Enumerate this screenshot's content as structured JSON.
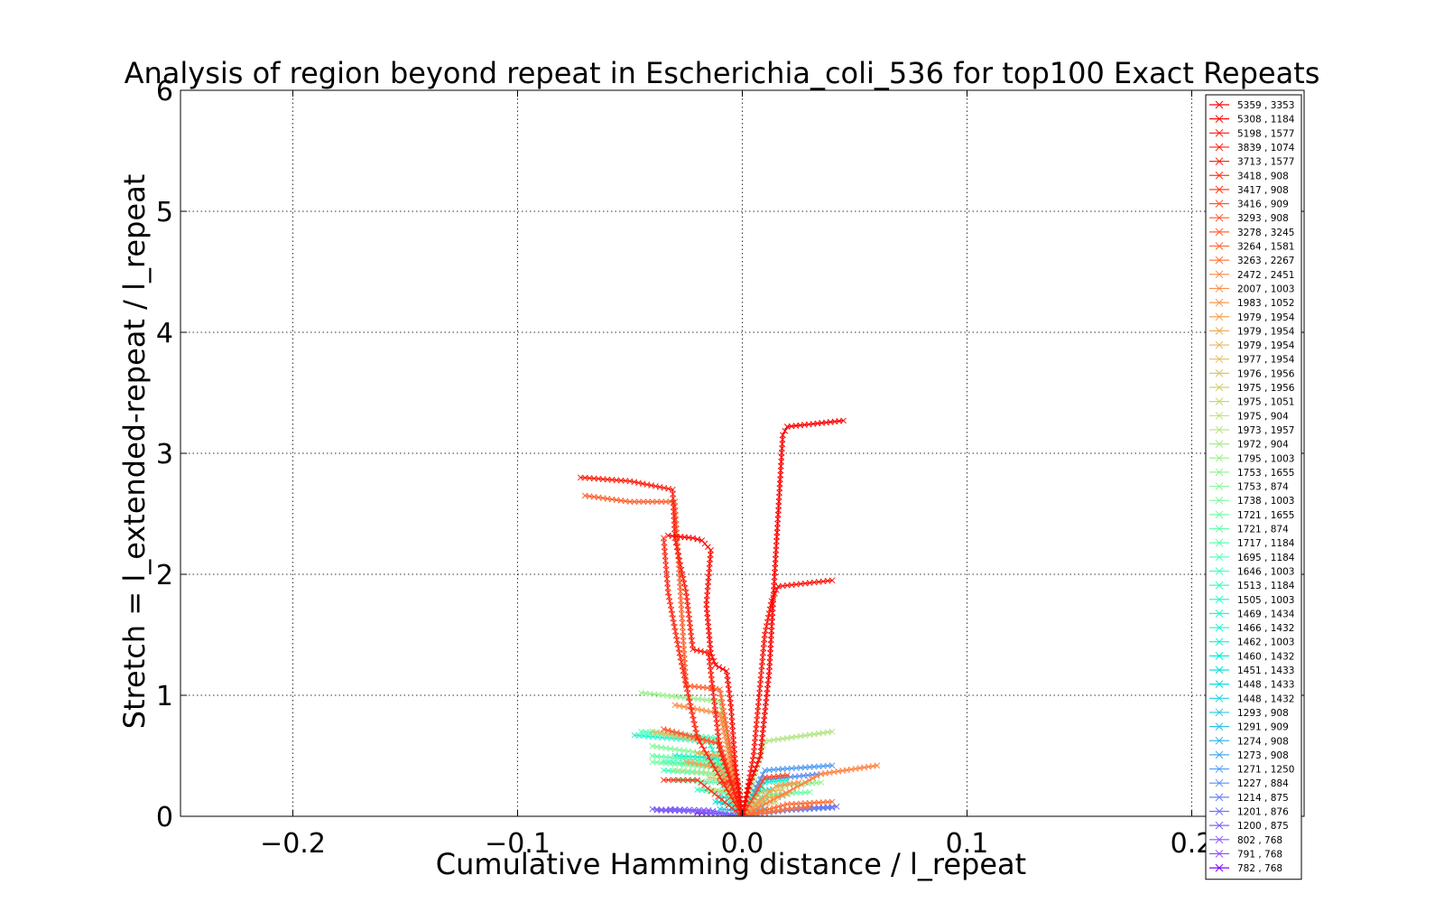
{
  "chart_data": {
    "type": "line",
    "title": "Analysis of region beyond repeat in Escherichia_coli_536 for top100 Exact Repeats",
    "xlabel": "Cumulative Hamming distance / l_repeat",
    "ylabel": "Stretch =  l_extended-repeat / l_repeat",
    "xlim": [
      -0.25,
      0.25
    ],
    "ylim": [
      0,
      6
    ],
    "xticks": [
      -0.2,
      -0.1,
      0.0,
      0.1,
      0.2
    ],
    "xtick_labels": [
      "−0.2",
      "−0.1",
      "0.0",
      "0.1",
      "0.2"
    ],
    "yticks": [
      0,
      1,
      2,
      3,
      4,
      5,
      6
    ],
    "ytick_labels": [
      "0",
      "1",
      "2",
      "3",
      "4",
      "5",
      "6"
    ],
    "grid": true,
    "legend_position": "right",
    "marker": "x",
    "colormap": "rainbow",
    "series": [
      {
        "name": "5359 , 3353",
        "color": "#ff0000",
        "points": [
          [
            0,
            0
          ],
          [
            0.003,
            0.25
          ],
          [
            0.008,
            0.5
          ],
          [
            0.012,
            1.2
          ],
          [
            0.015,
            2.2
          ],
          [
            0.018,
            3.15
          ],
          [
            0.02,
            3.22
          ],
          [
            0.045,
            3.27
          ]
        ]
      },
      {
        "name": "5308 , 1184",
        "color": "#ff0a05",
        "points": [
          [
            0,
            0
          ],
          [
            -0.003,
            0.4
          ],
          [
            -0.005,
            0.9
          ],
          [
            -0.007,
            1.2
          ],
          [
            -0.012,
            1.25
          ],
          [
            -0.014,
            1.35
          ],
          [
            -0.016,
            1.75
          ],
          [
            -0.014,
            2.2
          ],
          [
            -0.018,
            2.28
          ],
          [
            -0.022,
            2.3
          ],
          [
            -0.033,
            2.32
          ]
        ]
      },
      {
        "name": "5198 , 1577",
        "color": "#ff150b",
        "points": [
          [
            0,
            0
          ],
          [
            0.005,
            0.5
          ],
          [
            0.01,
            1.5
          ],
          [
            0.013,
            1.78
          ],
          [
            0.016,
            1.9
          ],
          [
            0.04,
            1.95
          ]
        ]
      },
      {
        "name": "3839 , 1074",
        "color": "#ff2010",
        "points": [
          [
            0,
            0
          ],
          [
            -0.01,
            0.55
          ],
          [
            -0.015,
            1.35
          ],
          [
            -0.022,
            1.38
          ],
          [
            -0.025,
            1.85
          ],
          [
            -0.03,
            2.3
          ],
          [
            -0.031,
            2.7
          ],
          [
            -0.05,
            2.77
          ],
          [
            -0.072,
            2.8
          ]
        ]
      },
      {
        "name": "3713 , 1577",
        "color": "#ff2b16",
        "points": [
          [
            0,
            0
          ],
          [
            -0.02,
            0.65
          ],
          [
            -0.028,
            1.35
          ],
          [
            -0.033,
            1.85
          ],
          [
            -0.035,
            2.3
          ]
        ]
      },
      {
        "name": "3418 , 908",
        "color": "#ff361b",
        "points": [
          [
            0,
            0
          ],
          [
            -0.02,
            0.3
          ],
          [
            -0.035,
            0.3
          ]
        ]
      },
      {
        "name": "3417 , 908",
        "color": "#ff4121",
        "points": [
          [
            0,
            0
          ],
          [
            -0.002,
            0.28
          ],
          [
            -0.01,
            0.28
          ]
        ]
      },
      {
        "name": "3416 , 909",
        "color": "#ff4c26",
        "points": [
          [
            0,
            0
          ],
          [
            0.01,
            0.32
          ],
          [
            0.02,
            0.34
          ]
        ]
      },
      {
        "name": "3293 , 908",
        "color": "#ff572c",
        "points": [
          [
            0,
            0
          ],
          [
            -0.01,
            0.6
          ],
          [
            -0.035,
            0.72
          ]
        ]
      },
      {
        "name": "3278 , 3245",
        "color": "#ff6231",
        "points": [
          [
            0,
            0
          ],
          [
            -0.01,
            1.05
          ],
          [
            -0.025,
            1.08
          ],
          [
            -0.03,
            2.6
          ],
          [
            -0.05,
            2.6
          ],
          [
            -0.07,
            2.65
          ]
        ]
      },
      {
        "name": "3264 , 1581",
        "color": "#ff6d37",
        "points": [
          [
            0,
            0
          ],
          [
            0.02,
            0.1
          ],
          [
            0.04,
            0.12
          ]
        ]
      },
      {
        "name": "3263 , 2267",
        "color": "#ff783c",
        "points": [
          [
            0,
            0
          ],
          [
            0.02,
            0.06
          ],
          [
            0.03,
            0.08
          ]
        ]
      },
      {
        "name": "2472 , 2451",
        "color": "#ff8342",
        "points": [
          [
            0,
            0
          ],
          [
            0.035,
            0.35
          ],
          [
            0.06,
            0.42
          ]
        ]
      },
      {
        "name": "2007 , 1003",
        "color": "#fb8e48",
        "points": [
          [
            0,
            0
          ],
          [
            -0.01,
            0.85
          ],
          [
            -0.03,
            0.92
          ]
        ]
      },
      {
        "name": "1983 , 1052",
        "color": "#f7994e",
        "points": [
          [
            0,
            0
          ],
          [
            0.015,
            0.25
          ],
          [
            0.025,
            0.28
          ]
        ]
      },
      {
        "name": "1979 , 1954",
        "color": "#f2a354",
        "points": [
          [
            0,
            0
          ],
          [
            -0.01,
            0.4
          ],
          [
            -0.025,
            0.45
          ]
        ]
      },
      {
        "name": "1979 , 1954",
        "color": "#ecad5a",
        "points": [
          [
            0,
            0
          ],
          [
            -0.008,
            0.5
          ],
          [
            -0.02,
            0.52
          ]
        ]
      },
      {
        "name": "1979 , 1954",
        "color": "#e6b660",
        "points": [
          [
            0,
            0
          ],
          [
            0.01,
            0.15
          ],
          [
            0.02,
            0.18
          ]
        ]
      },
      {
        "name": "1977 , 1954",
        "color": "#dfbf66",
        "points": [
          [
            0,
            0
          ],
          [
            -0.01,
            0.6
          ],
          [
            -0.04,
            0.7
          ]
        ]
      },
      {
        "name": "1976 , 1956",
        "color": "#d7c86c",
        "points": [
          [
            0,
            0
          ],
          [
            0.008,
            0.2
          ],
          [
            0.018,
            0.22
          ]
        ]
      },
      {
        "name": "1975 , 1956",
        "color": "#cfd072",
        "points": [
          [
            0,
            0
          ],
          [
            -0.006,
            0.3
          ],
          [
            -0.015,
            0.32
          ]
        ]
      },
      {
        "name": "1975 , 1051",
        "color": "#c6d878",
        "points": [
          [
            0,
            0
          ],
          [
            0.005,
            0.1
          ],
          [
            0.015,
            0.12
          ]
        ]
      },
      {
        "name": "1975 , 904",
        "color": "#bcdf7e",
        "points": [
          [
            0,
            0
          ],
          [
            -0.005,
            0.2
          ],
          [
            -0.015,
            0.22
          ]
        ]
      },
      {
        "name": "1973 , 1957",
        "color": "#b2e584",
        "points": [
          [
            0,
            0
          ],
          [
            0.01,
            0.62
          ],
          [
            0.04,
            0.7
          ]
        ]
      },
      {
        "name": "1972 , 904",
        "color": "#a8eb8a",
        "points": [
          [
            0,
            0
          ],
          [
            -0.01,
            0.35
          ],
          [
            -0.03,
            0.38
          ]
        ]
      },
      {
        "name": "1795 , 1003",
        "color": "#9ef090",
        "points": [
          [
            0,
            0
          ],
          [
            -0.01,
            0.95
          ],
          [
            -0.045,
            1.02
          ]
        ]
      },
      {
        "name": "1753 , 1655",
        "color": "#93f495",
        "points": [
          [
            0,
            0
          ],
          [
            0.015,
            0.25
          ],
          [
            0.035,
            0.28
          ]
        ]
      },
      {
        "name": "1753 , 874",
        "color": "#88f79b",
        "points": [
          [
            0,
            0
          ],
          [
            -0.01,
            0.5
          ],
          [
            -0.04,
            0.58
          ]
        ]
      },
      {
        "name": "1738 , 1003",
        "color": "#7dfaa1",
        "points": [
          [
            0,
            0
          ],
          [
            -0.012,
            0.4
          ],
          [
            -0.04,
            0.45
          ]
        ]
      },
      {
        "name": "1721 , 1655",
        "color": "#72fca6",
        "points": [
          [
            0,
            0
          ],
          [
            0.012,
            0.18
          ],
          [
            0.03,
            0.2
          ]
        ]
      },
      {
        "name": "1721 , 874",
        "color": "#67fdac",
        "points": [
          [
            0,
            0
          ],
          [
            -0.012,
            0.45
          ],
          [
            -0.04,
            0.5
          ]
        ]
      },
      {
        "name": "1717 , 1184",
        "color": "#5cfeb1",
        "points": [
          [
            0,
            0
          ],
          [
            -0.01,
            0.28
          ],
          [
            -0.03,
            0.3
          ]
        ]
      },
      {
        "name": "1695 , 1184",
        "color": "#51feb6",
        "points": [
          [
            0,
            0
          ],
          [
            -0.012,
            0.65
          ],
          [
            -0.045,
            0.7
          ]
        ]
      },
      {
        "name": "1646 , 1003",
        "color": "#46fdbb",
        "points": [
          [
            0,
            0
          ],
          [
            -0.01,
            0.35
          ],
          [
            -0.035,
            0.38
          ]
        ]
      },
      {
        "name": "1513 , 1184",
        "color": "#3bfbc0",
        "points": [
          [
            0,
            0
          ],
          [
            -0.008,
            0.2
          ],
          [
            -0.02,
            0.22
          ]
        ]
      },
      {
        "name": "1505 , 1003",
        "color": "#30f9c5",
        "points": [
          [
            0,
            0
          ],
          [
            -0.01,
            0.42
          ],
          [
            -0.035,
            0.45
          ]
        ]
      },
      {
        "name": "1469 , 1434",
        "color": "#25f6ca",
        "points": [
          [
            0,
            0
          ],
          [
            -0.015,
            0.62
          ],
          [
            -0.048,
            0.67
          ]
        ]
      },
      {
        "name": "1466 , 1432",
        "color": "#1af3ce",
        "points": [
          [
            0,
            0
          ],
          [
            0.01,
            0.28
          ],
          [
            0.02,
            0.3
          ]
        ]
      },
      {
        "name": "1462 , 1003",
        "color": "#10efd2",
        "points": [
          [
            0,
            0
          ],
          [
            -0.01,
            0.48
          ],
          [
            -0.03,
            0.5
          ]
        ]
      },
      {
        "name": "1460 , 1432",
        "color": "#05ebd6",
        "points": [
          [
            0,
            0
          ],
          [
            0.008,
            0.15
          ],
          [
            0.018,
            0.17
          ]
        ]
      },
      {
        "name": "1451 , 1433",
        "color": "#05e4da",
        "points": [
          [
            0,
            0
          ],
          [
            -0.005,
            0.1
          ],
          [
            -0.012,
            0.12
          ]
        ]
      },
      {
        "name": "1448 , 1433",
        "color": "#10dcde",
        "points": [
          [
            0,
            0
          ],
          [
            0.005,
            0.2
          ],
          [
            0.012,
            0.22
          ]
        ]
      },
      {
        "name": "1448 , 1432",
        "color": "#1ad3e1",
        "points": [
          [
            0,
            0
          ],
          [
            -0.004,
            0.15
          ],
          [
            -0.01,
            0.16
          ]
        ]
      },
      {
        "name": "1293 , 908",
        "color": "#25c9e5",
        "points": [
          [
            0,
            0
          ],
          [
            0.004,
            0.1
          ],
          [
            0.01,
            0.12
          ]
        ]
      },
      {
        "name": "1291 , 909",
        "color": "#30bfe8",
        "points": [
          [
            0,
            0
          ],
          [
            -0.004,
            0.05
          ],
          [
            -0.01,
            0.06
          ]
        ]
      },
      {
        "name": "1274 , 908",
        "color": "#3bb4eb",
        "points": [
          [
            0,
            0
          ],
          [
            0.004,
            0.05
          ],
          [
            0.01,
            0.06
          ]
        ]
      },
      {
        "name": "1273 , 908",
        "color": "#46a8ee",
        "points": [
          [
            0,
            0
          ],
          [
            0.003,
            0.08
          ],
          [
            0.008,
            0.09
          ]
        ]
      },
      {
        "name": "1271 , 1250",
        "color": "#519cf0",
        "points": [
          [
            0,
            0
          ],
          [
            0.01,
            0.38
          ],
          [
            0.04,
            0.42
          ]
        ]
      },
      {
        "name": "1227 , 884",
        "color": "#5c8ff2",
        "points": [
          [
            0,
            0
          ],
          [
            0.008,
            0.3
          ],
          [
            0.035,
            0.35
          ]
        ]
      },
      {
        "name": "1214 , 875",
        "color": "#6782f4",
        "points": [
          [
            0,
            0
          ],
          [
            0.02,
            0.05
          ],
          [
            0.04,
            0.07
          ]
        ]
      },
      {
        "name": "1201 , 876",
        "color": "#7274f6",
        "points": [
          [
            0,
            0
          ],
          [
            0.02,
            0.06
          ],
          [
            0.042,
            0.08
          ]
        ]
      },
      {
        "name": "1200 , 875",
        "color": "#7d66f8",
        "points": [
          [
            0,
            0
          ],
          [
            -0.02,
            0.04
          ],
          [
            -0.04,
            0.06
          ]
        ]
      },
      {
        "name": "802 , 768",
        "color": "#8857f9",
        "points": [
          [
            0,
            0
          ],
          [
            -0.015,
            0.05
          ],
          [
            -0.032,
            0.06
          ]
        ]
      },
      {
        "name": "791 , 768",
        "color": "#9348fb",
        "points": [
          [
            0,
            0
          ],
          [
            -0.02,
            0.04
          ],
          [
            -0.038,
            0.05
          ]
        ]
      },
      {
        "name": "782 , 768",
        "color": "#7f00ff",
        "points": [
          [
            0,
            0
          ],
          [
            -0.01,
            0.02
          ],
          [
            -0.02,
            0.03
          ]
        ]
      }
    ]
  }
}
